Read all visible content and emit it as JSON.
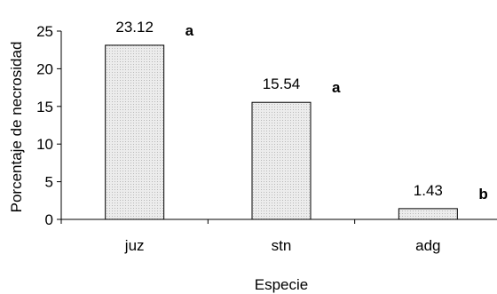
{
  "chart_data": {
    "type": "bar",
    "categories": [
      "juz",
      "stn",
      "adg"
    ],
    "values": [
      23.12,
      15.54,
      1.43
    ],
    "value_labels": [
      "23.12",
      "15.54",
      "1.43"
    ],
    "significance_letters": [
      "a",
      "a",
      "b"
    ],
    "xlabel": "Especie",
    "ylabel": "Porcentaje de necrosidad",
    "ylim": [
      0,
      25
    ],
    "yticks": [
      0,
      5,
      10,
      15,
      20,
      25
    ],
    "grid": false,
    "legend": "none",
    "bar_fill": "#e6e6e6",
    "bar_stroke": "#000000"
  }
}
